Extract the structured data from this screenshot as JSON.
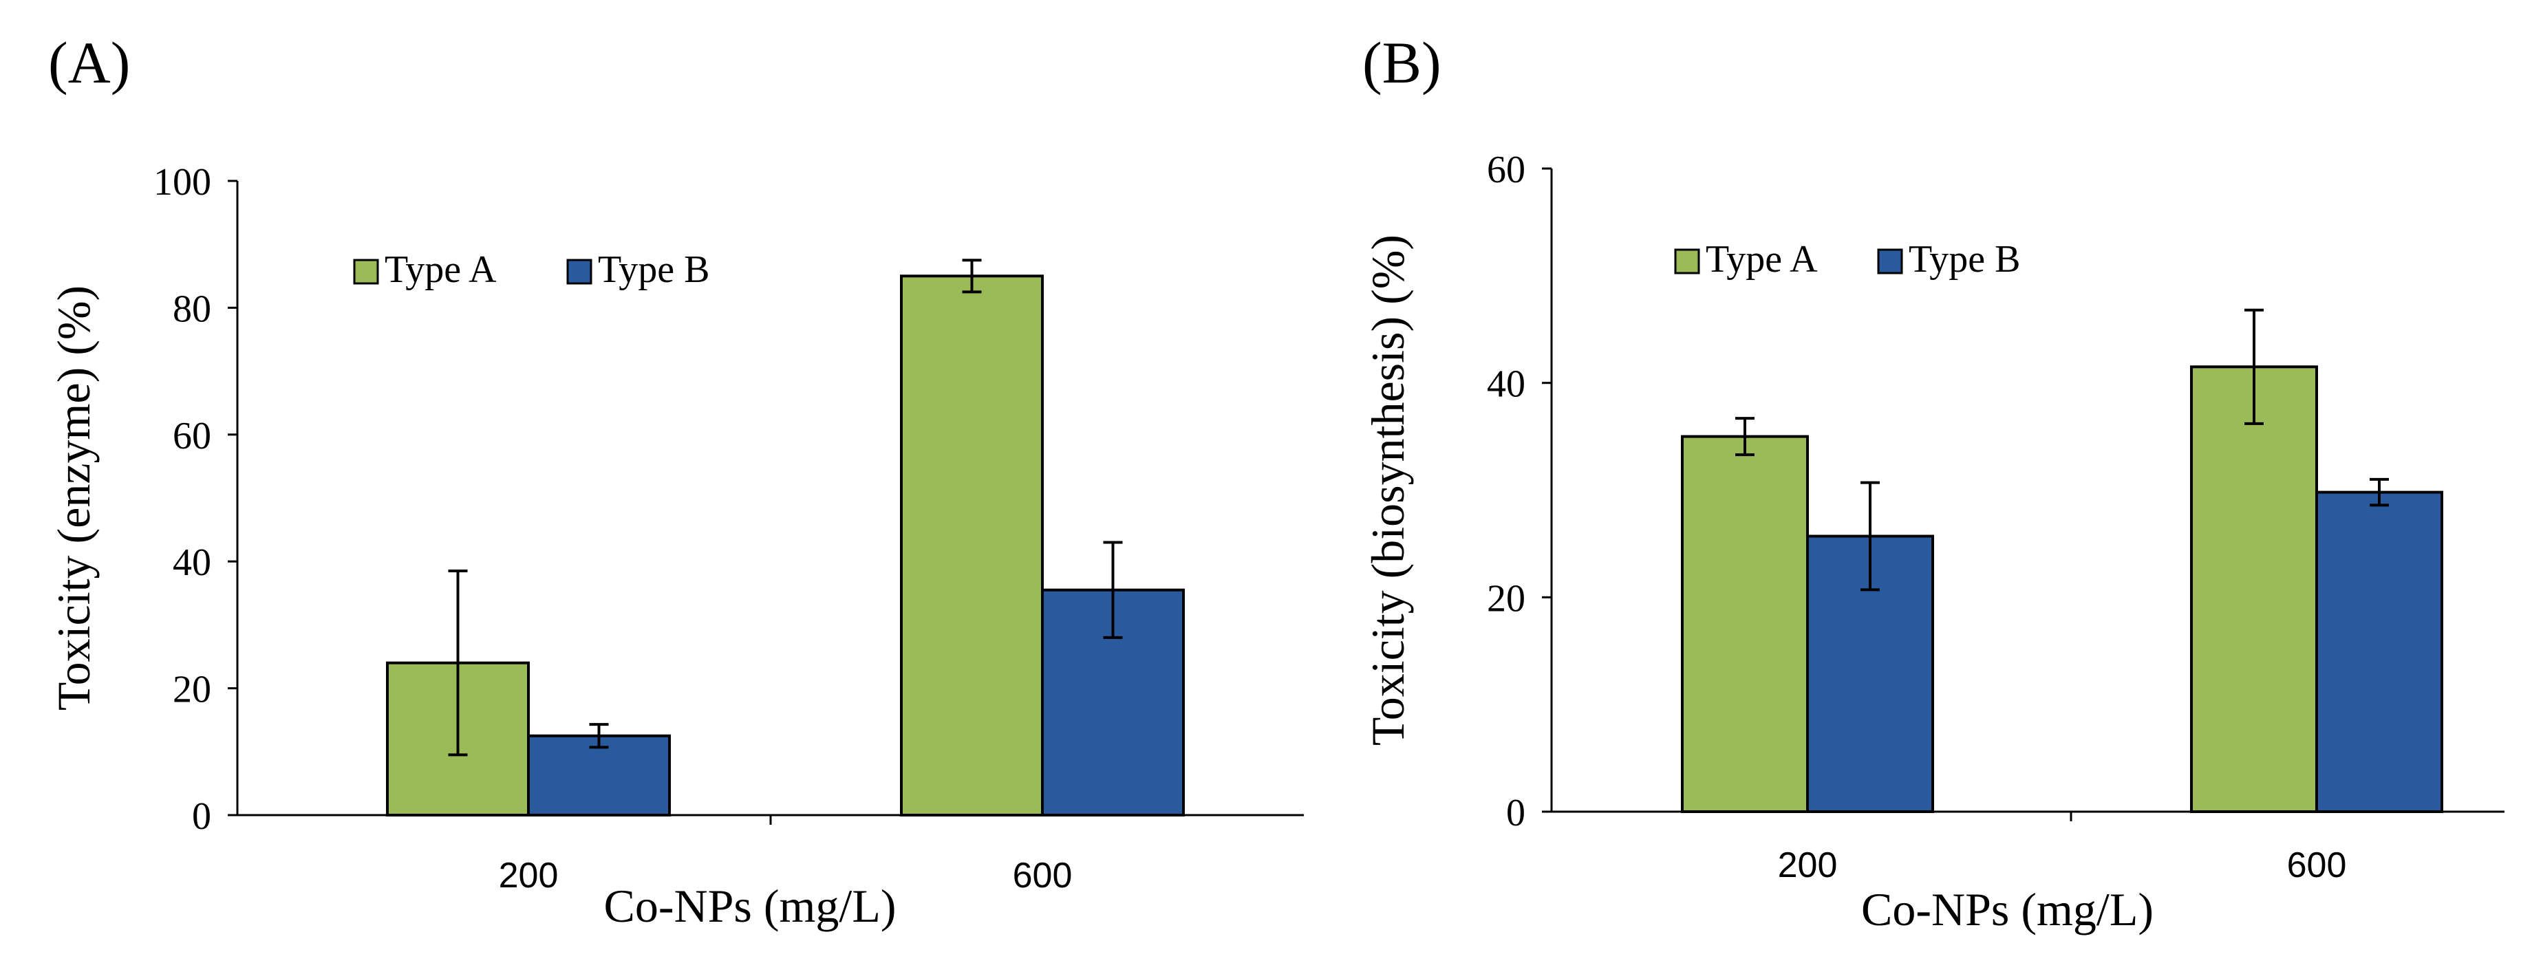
{
  "chart_data": [
    {
      "panel_label": "(A)",
      "type": "bar",
      "categories": [
        "200",
        "600"
      ],
      "series": [
        {
          "name": "Type A",
          "color": "#9bbb59",
          "values": [
            24,
            85
          ],
          "errors": [
            14.5,
            2.5
          ]
        },
        {
          "name": "Type B",
          "color": "#2a5a9e",
          "values": [
            12.5,
            35.5
          ],
          "errors": [
            1.8,
            7.5
          ]
        }
      ],
      "xlabel": "Co-NPs (mg/L)",
      "ylabel": "Toxicity (enzyme) (%)",
      "ylim": [
        0,
        100
      ],
      "yticks": [
        0,
        20,
        40,
        60,
        80,
        100
      ],
      "legend_position": "top-left"
    },
    {
      "panel_label": "(B)",
      "type": "bar",
      "categories": [
        "200",
        "600"
      ],
      "series": [
        {
          "name": "Type A",
          "color": "#9bbb59",
          "values": [
            35,
            41.5
          ],
          "errors": [
            1.7,
            5.3
          ]
        },
        {
          "name": "Type B",
          "color": "#2a5a9e",
          "values": [
            25.7,
            29.8
          ],
          "errors": [
            5,
            1.2
          ]
        }
      ],
      "xlabel": "Co-NPs (mg/L)",
      "ylabel": "Toxicity (biosynthesis) (%)",
      "ylim": [
        0,
        60
      ],
      "yticks": [
        0,
        20,
        40,
        60
      ],
      "legend_position": "top-left"
    }
  ]
}
